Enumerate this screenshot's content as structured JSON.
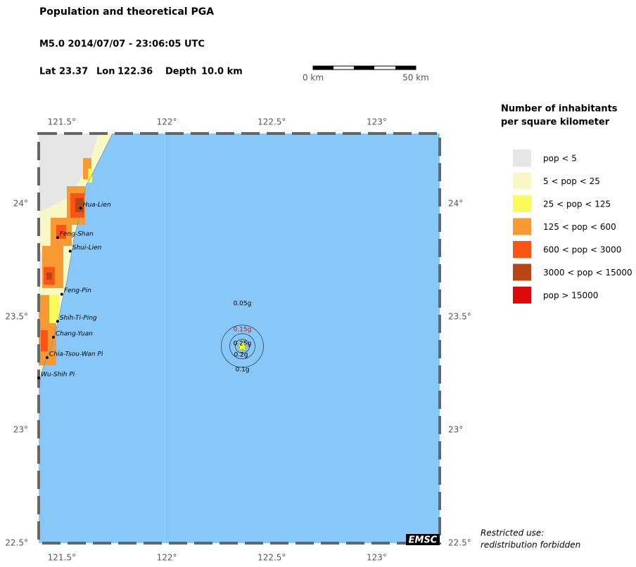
{
  "header": {
    "title": "Population and theoretical PGA",
    "event": "M5.0  2014/07/07 - 23:06:05 UTC",
    "lat_label": "Lat",
    "lat": 23.37,
    "lon_label": "Lon",
    "lon": 122.36,
    "depth_label": "Depth",
    "depth": "10.0 km"
  },
  "scale_bar": {
    "start": "0 km",
    "end": "50 km"
  },
  "map": {
    "xlim": [
      121.39,
      123.3
    ],
    "ylim": [
      22.5,
      24.31
    ],
    "xticks": [
      {
        "value": 121.5,
        "label": "121.5°"
      },
      {
        "value": 122,
        "label": "122°"
      },
      {
        "value": 122.5,
        "label": "122.5°"
      },
      {
        "value": 123,
        "label": "123°"
      }
    ],
    "yticks": [
      {
        "value": 22.5,
        "label": "22.5°"
      },
      {
        "value": 23,
        "label": "23°"
      },
      {
        "value": 23.5,
        "label": "23.5°"
      },
      {
        "value": 24,
        "label": "24°"
      }
    ],
    "cities": [
      {
        "name": "Hua-Lien",
        "lon": 121.59,
        "lat": 23.98
      },
      {
        "name": "Feng-Shan",
        "lon": 121.48,
        "lat": 23.85
      },
      {
        "name": "Shui-Lien",
        "lon": 121.54,
        "lat": 23.79
      },
      {
        "name": "Feng-Pin",
        "lon": 121.5,
        "lat": 23.6
      },
      {
        "name": "Shih-Ti-Ping",
        "lon": 121.48,
        "lat": 23.48
      },
      {
        "name": "Chang-Yuan",
        "lon": 121.46,
        "lat": 23.41
      },
      {
        "name": "Chia-Tsou-Wan Pi",
        "lon": 121.43,
        "lat": 23.32
      },
      {
        "name": "Wu-Shih Pi",
        "lon": 121.39,
        "lat": 23.23
      }
    ],
    "pga_labels": [
      "0.05g",
      "0.15g",
      "0.25g",
      "0.2g",
      "0.1g"
    ],
    "logo": "EMSC"
  },
  "legend": {
    "title_line1": "Number of inhabitants",
    "title_line2": "per square kilometer",
    "items": [
      {
        "label": "pop < 5",
        "color": "#e6e6e6"
      },
      {
        "label": "5 < pop < 25",
        "color": "#f8f8c6"
      },
      {
        "label": "25 < pop < 125",
        "color": "#fafa5a"
      },
      {
        "label": "125 < pop < 600",
        "color": "#f89a32"
      },
      {
        "label": "600 < pop < 3000",
        "color": "#fc5316"
      },
      {
        "label": "3000 < pop < 15000",
        "color": "#b84615"
      },
      {
        "label": "pop > 15000",
        "color": "#dc0a0a"
      }
    ]
  },
  "notice": {
    "line1": "Restricted use:",
    "line2": "redistribution forbidden"
  }
}
